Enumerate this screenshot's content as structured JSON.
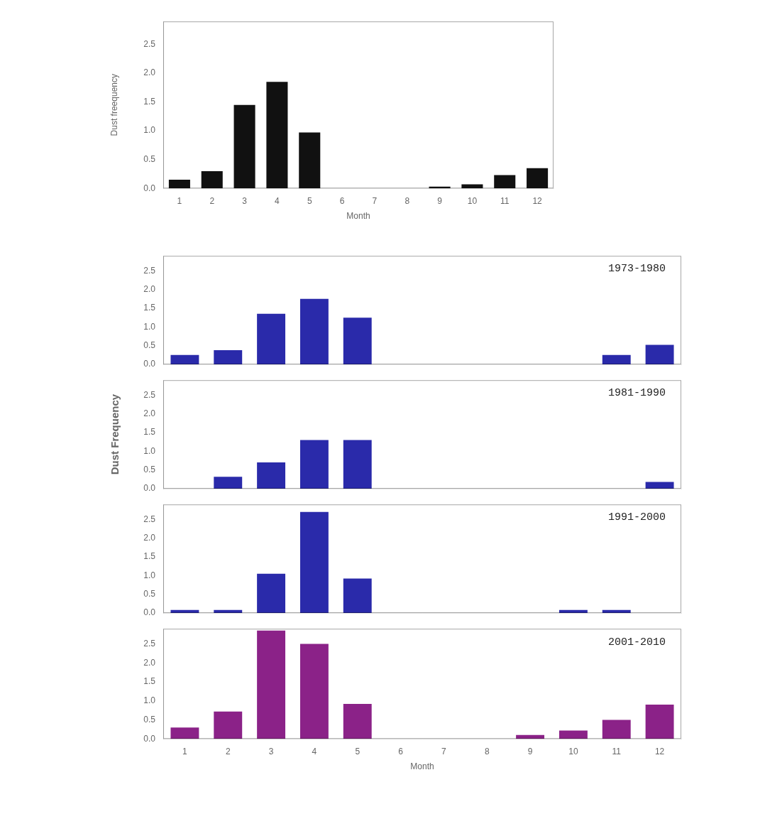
{
  "chart_data": [
    {
      "type": "bar",
      "categories": [
        "1",
        "2",
        "3",
        "4",
        "5",
        "6",
        "7",
        "8",
        "9",
        "10",
        "11",
        "12"
      ],
      "values": [
        0.15,
        0.3,
        1.45,
        1.85,
        0.97,
        0.0,
        0.0,
        0.0,
        0.03,
        0.07,
        0.23,
        0.35
      ],
      "color": "#111111",
      "ylabel": "Dust freequency",
      "xlabel": "Month",
      "ylim": [
        0,
        2.9
      ],
      "yticks": [
        {
          "value": 0,
          "label": "0.0"
        },
        0.5,
        {
          "value": 1,
          "label": "1.0"
        },
        1.5,
        {
          "value": 2,
          "label": "2.0"
        },
        2.5
      ],
      "grid": false
    },
    {
      "type": "bar",
      "categories": [
        "1",
        "2",
        "3",
        "4",
        "5",
        "6",
        "7",
        "8",
        "9",
        "10",
        "11",
        "12"
      ],
      "values": [
        0.25,
        0.38,
        1.35,
        1.75,
        1.25,
        0.0,
        0.0,
        0.0,
        0.0,
        0.0,
        0.25,
        0.52
      ],
      "color": "#2a2aaa",
      "annotation": "1973-1980",
      "ylim": [
        0,
        2.9
      ],
      "yticks": [
        {
          "value": 0,
          "label": "0.0"
        },
        0.5,
        {
          "value": 1,
          "label": "1.0"
        },
        1.5,
        {
          "value": 2,
          "label": "2.0"
        },
        2.5
      ],
      "grid": false,
      "tick_labels": "y"
    },
    {
      "type": "bar",
      "categories": [
        "1",
        "2",
        "3",
        "4",
        "5",
        "6",
        "7",
        "8",
        "9",
        "10",
        "11",
        "12"
      ],
      "values": [
        0.0,
        0.32,
        0.7,
        1.3,
        1.3,
        0.0,
        0.0,
        0.0,
        0.0,
        0.0,
        0.0,
        0.18
      ],
      "color": "#2a2aaa",
      "annotation": "1981-1990",
      "ylabel": "Dust Frequency",
      "ylim": [
        0,
        2.9
      ],
      "yticks": [
        {
          "value": 0,
          "label": "0.0"
        },
        0.5,
        {
          "value": 1,
          "label": "1.0"
        },
        1.5,
        {
          "value": 2,
          "label": "2.0"
        },
        2.5
      ],
      "grid": false,
      "tick_labels": "y"
    },
    {
      "type": "bar",
      "categories": [
        "1",
        "2",
        "3",
        "4",
        "5",
        "6",
        "7",
        "8",
        "9",
        "10",
        "11",
        "12"
      ],
      "values": [
        0.08,
        0.08,
        1.05,
        2.7,
        0.92,
        0.0,
        0.0,
        0.0,
        0.0,
        0.08,
        0.08,
        0.0
      ],
      "color": "#2a2aaa",
      "annotation": "1991-2000",
      "ylim": [
        0,
        2.9
      ],
      "yticks": [
        {
          "value": 0,
          "label": "0.0"
        },
        0.5,
        {
          "value": 1,
          "label": "1.0"
        },
        1.5,
        {
          "value": 2,
          "label": "2.0"
        },
        2.5
      ],
      "grid": false,
      "tick_labels": "y"
    },
    {
      "type": "bar",
      "categories": [
        "1",
        "2",
        "3",
        "4",
        "5",
        "6",
        "7",
        "8",
        "9",
        "10",
        "11",
        "12"
      ],
      "values": [
        0.3,
        0.72,
        2.85,
        2.5,
        0.92,
        0.0,
        0.0,
        0.0,
        0.1,
        0.22,
        0.5,
        0.9
      ],
      "color": "#8b2288",
      "annotation": "2001-2010",
      "xlabel": "Month",
      "ylim": [
        0,
        2.9
      ],
      "yticks": [
        {
          "value": 0,
          "label": "0.0"
        },
        0.5,
        {
          "value": 1,
          "label": "1.0"
        },
        1.5,
        {
          "value": 2,
          "label": "2.0"
        },
        2.5
      ],
      "grid": false
    }
  ]
}
